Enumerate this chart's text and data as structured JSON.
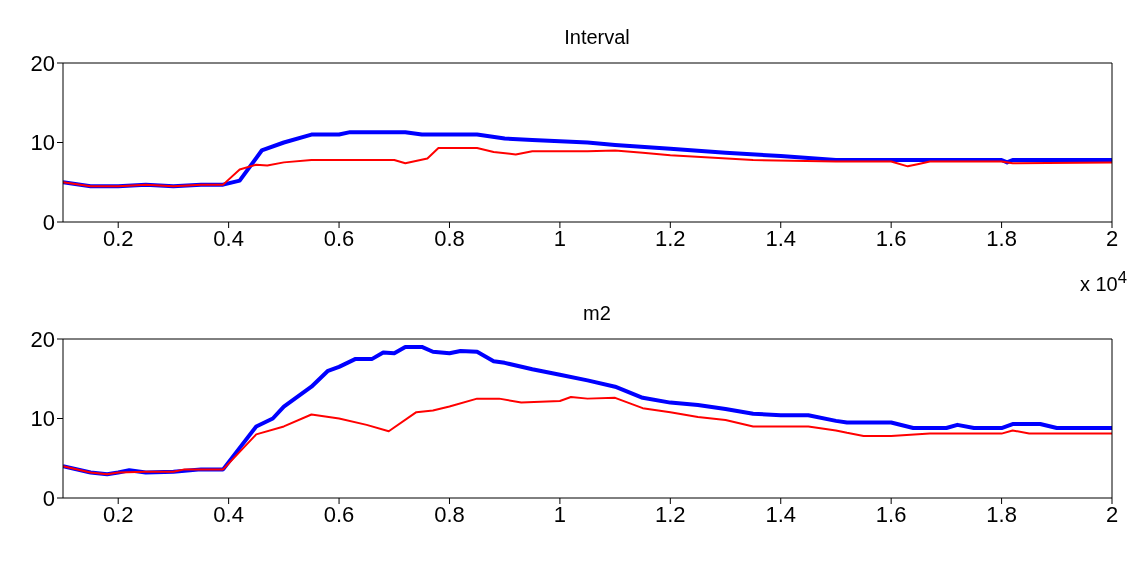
{
  "chart_data": [
    {
      "type": "line",
      "title": "Interval",
      "xlim": [
        0.1,
        2
      ],
      "xticks": [
        0.2,
        0.4,
        0.6,
        0.8,
        1,
        1.2,
        1.4,
        1.6,
        1.8,
        2
      ],
      "ylim": [
        0,
        20
      ],
      "yticks": [
        0,
        10,
        20
      ],
      "grid": false,
      "marker": "none",
      "line_style": "solid",
      "annotations": [
        "x 10$^{4}$"
      ],
      "series": [
        {
          "color": "#0000ff",
          "x": [
            0.1,
            0.15,
            0.2,
            0.25,
            0.3,
            0.35,
            0.39,
            0.42,
            0.46,
            0.5,
            0.55,
            0.6,
            0.62,
            0.72,
            0.75,
            0.85,
            0.9,
            0.95,
            1.05,
            1.1,
            1.2,
            1.3,
            1.4,
            1.5,
            1.55,
            1.7,
            1.8,
            1.81,
            1.82,
            2
          ],
          "values": [
            5,
            4.5,
            4.5,
            4.7,
            4.5,
            4.7,
            4.7,
            5.2,
            9,
            10,
            11,
            11,
            11.3,
            11.3,
            11,
            11,
            10.5,
            10.3,
            10,
            9.7,
            9.2,
            8.7,
            8.3,
            7.8,
            7.8,
            7.8,
            7.8,
            7.5,
            7.8,
            7.8
          ]
        },
        {
          "color": "#ff0000",
          "x": [
            0.1,
            0.15,
            0.2,
            0.25,
            0.3,
            0.35,
            0.39,
            0.42,
            0.45,
            0.47,
            0.5,
            0.55,
            0.7,
            0.72,
            0.76,
            0.78,
            0.85,
            0.88,
            0.92,
            0.95,
            1.05,
            1.1,
            1.15,
            1.2,
            1.35,
            1.5,
            1.6,
            1.63,
            1.65,
            1.67,
            1.8,
            1.82,
            2
          ],
          "values": [
            5,
            4.5,
            4.5,
            4.7,
            4.5,
            4.7,
            4.7,
            6.6,
            7.2,
            7.1,
            7.5,
            7.8,
            7.8,
            7.4,
            8,
            9.3,
            9.3,
            8.8,
            8.5,
            8.9,
            8.9,
            9,
            8.7,
            8.4,
            7.8,
            7.6,
            7.6,
            7,
            7.3,
            7.6,
            7.6,
            7.4,
            7.5
          ]
        }
      ]
    },
    {
      "type": "line",
      "title": "m2",
      "xlim": [
        0.1,
        2
      ],
      "xticks": [
        0.2,
        0.4,
        0.6,
        0.8,
        1,
        1.2,
        1.4,
        1.6,
        1.8,
        2
      ],
      "ylim": [
        0,
        20
      ],
      "yticks": [
        0,
        10,
        20
      ],
      "grid": false,
      "marker": "none",
      "line_style": "solid",
      "series": [
        {
          "color": "#0000ff",
          "x": [
            0.1,
            0.15,
            0.18,
            0.2,
            0.22,
            0.25,
            0.3,
            0.35,
            0.39,
            0.45,
            0.48,
            0.5,
            0.55,
            0.58,
            0.6,
            0.63,
            0.66,
            0.68,
            0.7,
            0.72,
            0.75,
            0.77,
            0.8,
            0.82,
            0.85,
            0.88,
            0.9,
            0.95,
            1,
            1.05,
            1.1,
            1.15,
            1.2,
            1.25,
            1.3,
            1.35,
            1.4,
            1.45,
            1.5,
            1.52,
            1.6,
            1.64,
            1.7,
            1.72,
            1.75,
            1.8,
            1.82,
            1.87,
            1.9,
            2
          ],
          "values": [
            4,
            3.2,
            3,
            3.2,
            3.5,
            3.2,
            3.3,
            3.6,
            3.6,
            9,
            10,
            11.5,
            14,
            16,
            16.5,
            17.5,
            17.5,
            18.3,
            18.2,
            19,
            19,
            18.4,
            18.2,
            18.5,
            18.4,
            17.2,
            17,
            16.2,
            15.5,
            14.8,
            14,
            12.6,
            12,
            11.7,
            11.2,
            10.6,
            10.4,
            10.4,
            9.7,
            9.5,
            9.5,
            8.8,
            8.8,
            9.2,
            8.8,
            8.8,
            9.3,
            9.3,
            8.8,
            8.8
          ]
        },
        {
          "color": "#ff0000",
          "x": [
            0.1,
            0.15,
            0.18,
            0.2,
            0.25,
            0.3,
            0.32,
            0.39,
            0.45,
            0.5,
            0.55,
            0.6,
            0.65,
            0.69,
            0.74,
            0.77,
            0.8,
            0.85,
            0.89,
            0.93,
            1,
            1.02,
            1.05,
            1.1,
            1.15,
            1.2,
            1.25,
            1.3,
            1.35,
            1.45,
            1.5,
            1.52,
            1.55,
            1.6,
            1.67,
            1.8,
            1.82,
            1.85,
            2
          ],
          "values": [
            4,
            3.2,
            3,
            3.2,
            3.3,
            3.3,
            3.6,
            3.6,
            8,
            9,
            10.5,
            10,
            9.2,
            8.4,
            10.8,
            11,
            11.5,
            12.5,
            12.5,
            12,
            12.2,
            12.7,
            12.5,
            12.6,
            11.3,
            10.8,
            10.2,
            9.8,
            9,
            9,
            8.5,
            8.2,
            7.8,
            7.8,
            8.1,
            8.1,
            8.5,
            8.1,
            8.1
          ]
        }
      ]
    }
  ]
}
